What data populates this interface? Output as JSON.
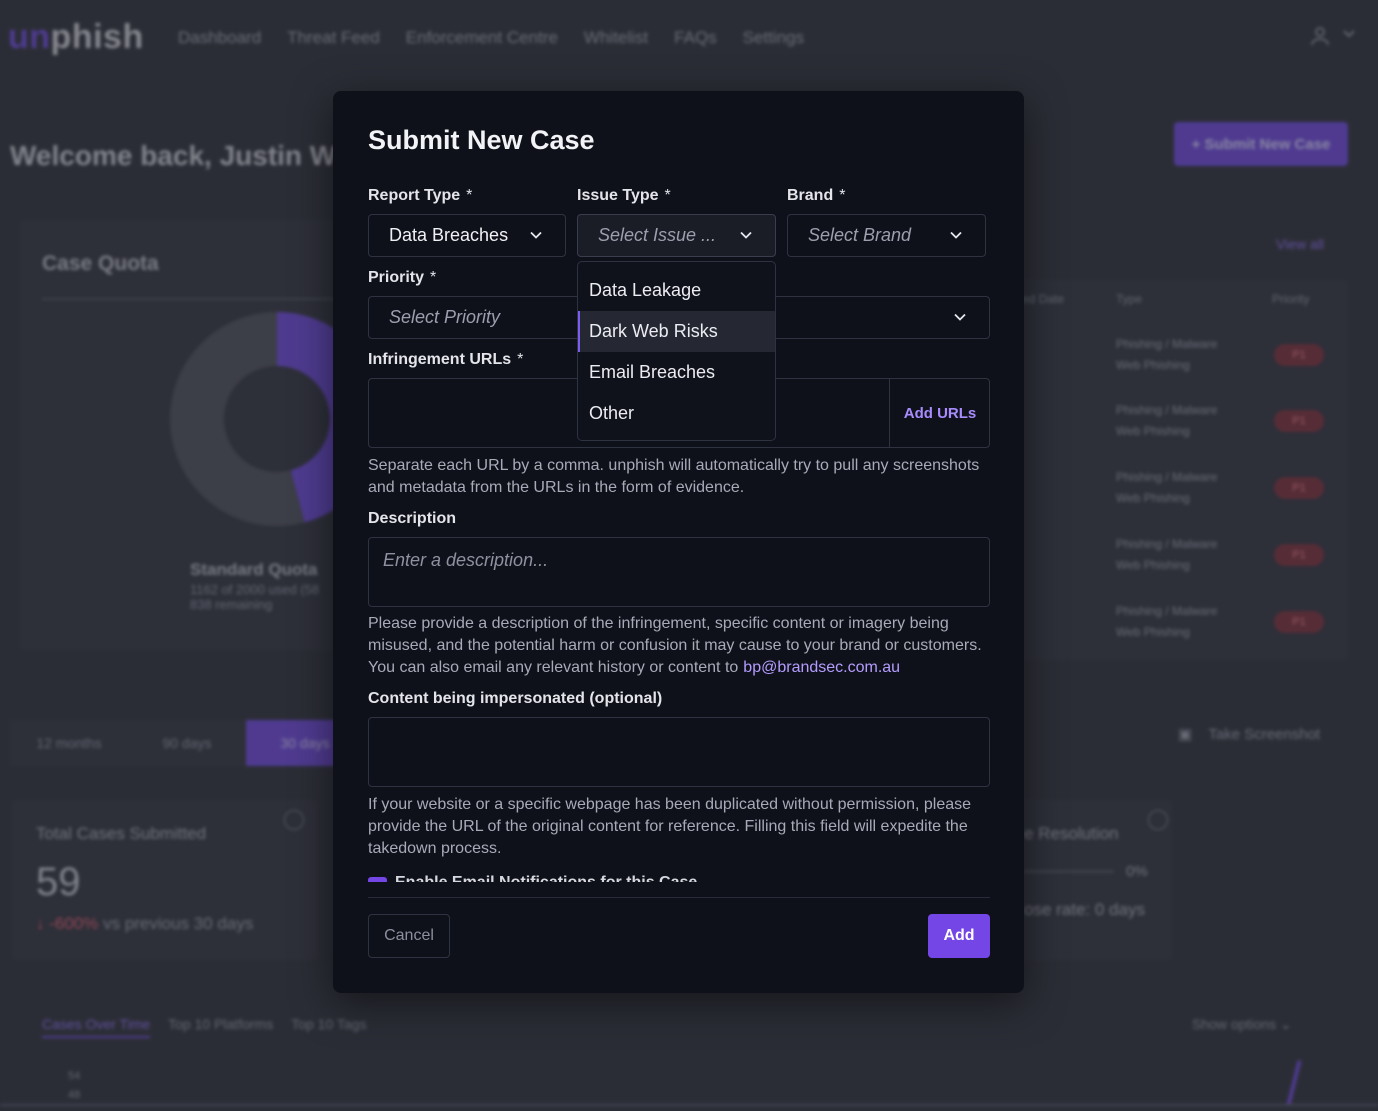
{
  "app": {
    "logo_prefix": "un",
    "logo_suffix": "phish",
    "nav": [
      "Dashboard",
      "Threat Feed",
      "Enforcement Centre",
      "Whitelist",
      "FAQs",
      "Settings"
    ],
    "welcome": "Welcome back, Justin Wi",
    "submit_button": "+ Submit New Case",
    "quota": {
      "title": "Case Quota",
      "label": "Standard Quota",
      "used": "1162 of 2000 used (58",
      "remaining": "838 remaining"
    },
    "table": {
      "view_all": "View all",
      "headers": [
        "ed Date",
        "Type",
        "Priority"
      ],
      "rows": [
        {
          "date": "",
          "type1": "Phishing / Malware",
          "type2": "Web Phishing",
          "priority": "P1"
        },
        {
          "date": "",
          "type1": "Phishing / Malware",
          "type2": "Web Phishing",
          "priority": "P1"
        },
        {
          "date": "",
          "type1": "Phishing / Malware",
          "type2": "Web Phishing",
          "priority": "P1"
        },
        {
          "date": "",
          "type1": "Phishing / Malware",
          "type2": "Web Phishing",
          "priority": "P1"
        },
        {
          "date": "",
          "type1": "Phishing / Malware",
          "type2": "Web Phishing",
          "priority": "P1"
        }
      ]
    },
    "ranges": [
      "12 months",
      "90 days",
      "30 days"
    ],
    "take_screenshot": "Take Screenshot",
    "stats": {
      "title": "Total Cases Submitted",
      "value": "59",
      "delta": "-600%",
      "delta_suffix": " vs previous 30 days"
    },
    "resolution": {
      "title": "e Resolution",
      "pct": "0%",
      "rate": "ose rate: 0 days"
    },
    "chart_tabs": [
      "Cases Over Time",
      "Top 10 Platforms",
      "Top 10 Tags"
    ],
    "show_options": "Show options",
    "axis_ticks": [
      "54",
      "48"
    ]
  },
  "modal": {
    "title": "Submit New Case",
    "report_type": {
      "label": "Report Type",
      "req": "*",
      "value": "Data Breaches"
    },
    "issue_type": {
      "label": "Issue Type",
      "req": "*",
      "placeholder": "Select Issue ..."
    },
    "brand": {
      "label": "Brand",
      "req": "*",
      "placeholder": "Select Brand"
    },
    "priority": {
      "label": "Priority",
      "req": "*",
      "placeholder": "Select Priority"
    },
    "issue_options": [
      "Data Leakage",
      "Dark Web Risks",
      "Email Breaches",
      "Other"
    ],
    "highlighted_option": "Dark Web Risks",
    "urls": {
      "label": "Infringement URLs",
      "req": "*",
      "button": "Add URLs",
      "help": "Separate each URL by a comma. unphish will automatically try to pull any screenshots and metadata from the URLs in the form of evidence."
    },
    "description": {
      "label": "Description",
      "placeholder": "Enter a description...",
      "help": "Please provide a description of the infringement, specific content or imagery being misused, and the potential harm or confusion it may cause to your brand or customers. You can also email any relevant history or content to",
      "email": "bp@brandsec.com.au"
    },
    "content": {
      "label": "Content being impersonated (optional)",
      "help": "If your website or a specific webpage has been duplicated without permission, please provide the URL of the original content for reference. Filling this field will expedite the takedown process."
    },
    "notifications_label": "Enable Email Notifications for this Case",
    "cancel": "Cancel",
    "add": "Add"
  },
  "colors": {
    "accent": "#7446e6",
    "link": "#b49cff",
    "modal_bg": "#0f111a",
    "priority_badge": "#7a2d38"
  }
}
